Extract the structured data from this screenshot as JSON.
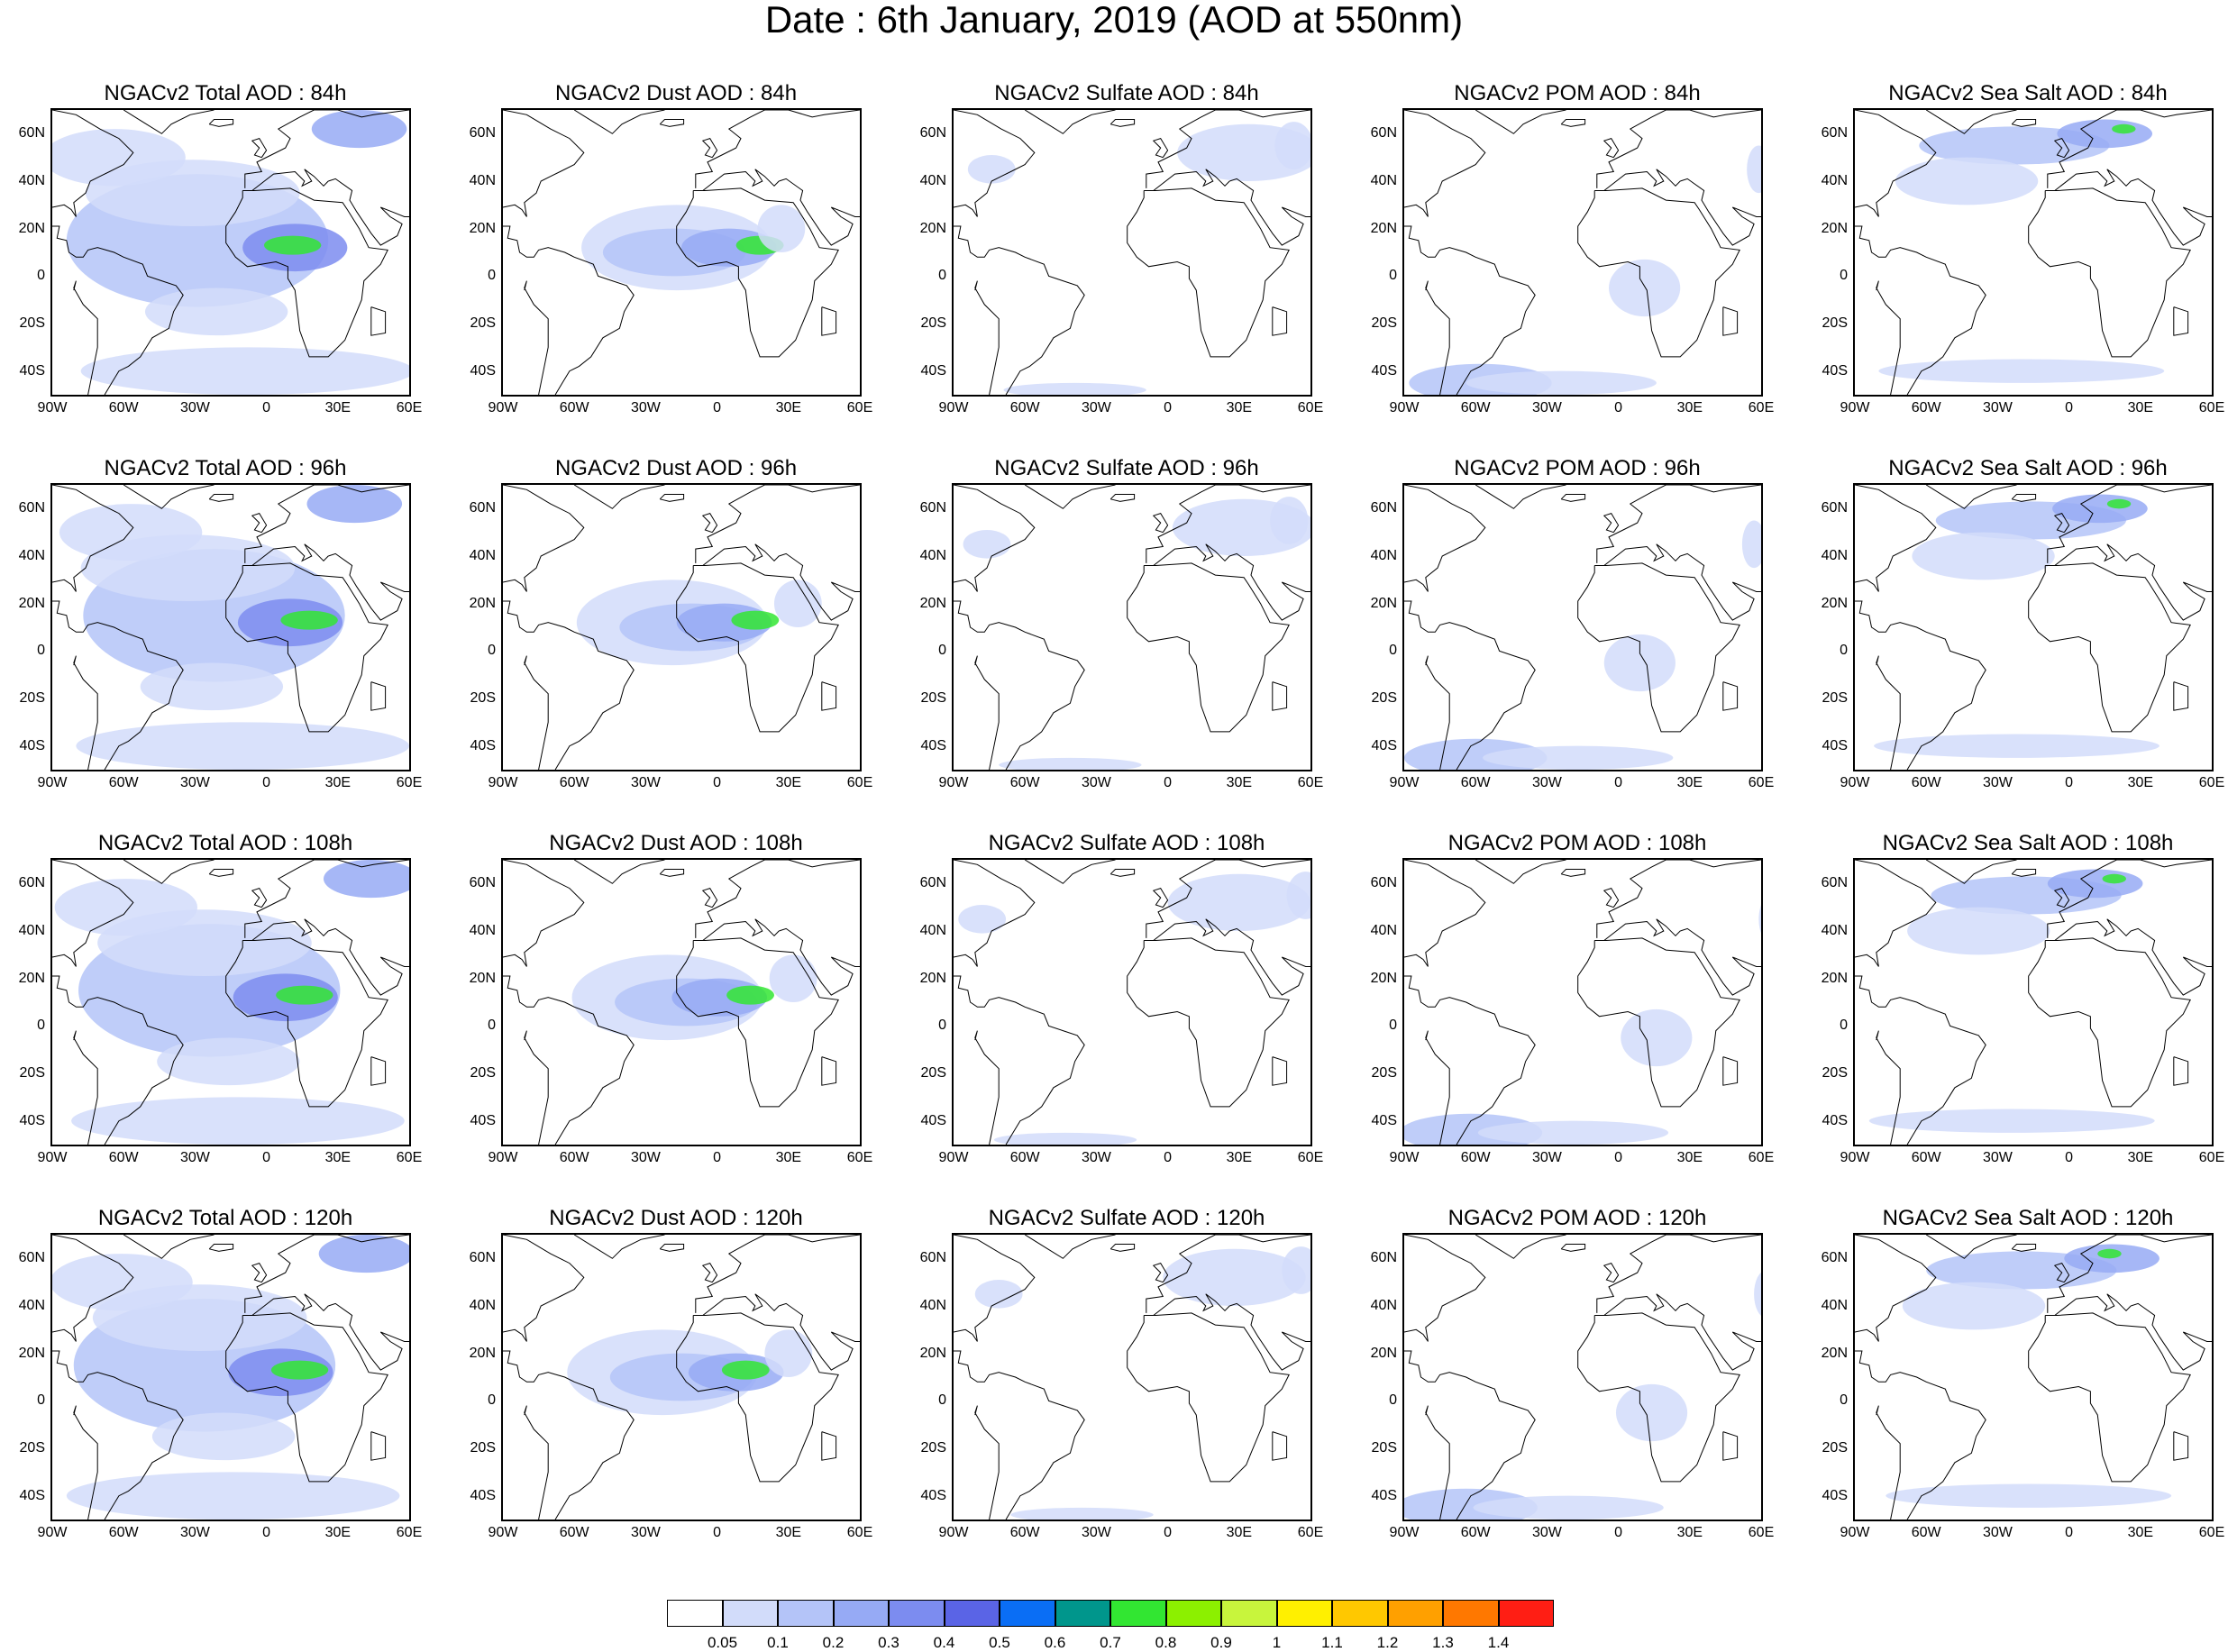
{
  "title": "Date : 6th January, 2019 (AOD at 550nm)",
  "axes": {
    "lat_ticks": [
      "60N",
      "40N",
      "20N",
      "0",
      "20S",
      "40S"
    ],
    "lat_values": [
      60,
      40,
      20,
      0,
      -20,
      -40
    ],
    "lon_ticks": [
      "90W",
      "60W",
      "30W",
      "0",
      "30E",
      "60E"
    ],
    "lon_values": [
      -90,
      -60,
      -30,
      0,
      30,
      60
    ],
    "lon_range": [
      -90,
      60
    ],
    "lat_range": [
      -50,
      70
    ]
  },
  "rows": [
    {
      "panels": [
        {
          "title": "NGACv2 Total AOD : 84h",
          "species": "total",
          "hour": 84
        },
        {
          "title": "NGACv2 Dust AOD : 84h",
          "species": "dust",
          "hour": 84
        },
        {
          "title": "NGACv2 Sulfate AOD : 84h",
          "species": "sulfate",
          "hour": 84
        },
        {
          "title": "NGACv2 POM AOD : 84h",
          "species": "pom",
          "hour": 84
        },
        {
          "title": "NGACv2 Sea Salt AOD : 84h",
          "species": "seasalt",
          "hour": 84
        }
      ]
    },
    {
      "panels": [
        {
          "title": "NGACv2 Total AOD : 96h",
          "species": "total",
          "hour": 96
        },
        {
          "title": "NGACv2 Dust AOD : 96h",
          "species": "dust",
          "hour": 96
        },
        {
          "title": "NGACv2 Sulfate AOD : 96h",
          "species": "sulfate",
          "hour": 96
        },
        {
          "title": "NGACv2 POM AOD : 96h",
          "species": "pom",
          "hour": 96
        },
        {
          "title": "NGACv2 Sea Salt AOD : 96h",
          "species": "seasalt",
          "hour": 96
        }
      ]
    },
    {
      "panels": [
        {
          "title": "NGACv2 Total AOD : 108h",
          "species": "total",
          "hour": 108
        },
        {
          "title": "NGACv2 Dust AOD : 108h",
          "species": "dust",
          "hour": 108
        },
        {
          "title": "NGACv2 Sulfate AOD : 108h",
          "species": "sulfate",
          "hour": 108
        },
        {
          "title": "NGACv2 POM AOD : 108h",
          "species": "pom",
          "hour": 108
        },
        {
          "title": "NGACv2 Sea Salt AOD : 108h",
          "species": "seasalt",
          "hour": 108
        }
      ]
    },
    {
      "panels": [
        {
          "title": "NGACv2 Total AOD : 120h",
          "species": "total",
          "hour": 120
        },
        {
          "title": "NGACv2 Dust AOD : 120h",
          "species": "dust",
          "hour": 120
        },
        {
          "title": "NGACv2 Sulfate AOD : 120h",
          "species": "sulfate",
          "hour": 120
        },
        {
          "title": "NGACv2 POM AOD : 120h",
          "species": "pom",
          "hour": 120
        },
        {
          "title": "NGACv2 Sea Salt  AOD : 120h",
          "species": "seasalt",
          "hour": 120
        }
      ]
    }
  ],
  "colorbar": {
    "labels": [
      "0.05",
      "0.1",
      "0.2",
      "0.3",
      "0.4",
      "0.5",
      "0.6",
      "0.7",
      "0.8",
      "0.9",
      "1",
      "1.1",
      "1.2",
      "1.3",
      "1.4"
    ],
    "colors": [
      "#ffffff",
      "#d2dcfa",
      "#b4c4f8",
      "#96aaf5",
      "#7c8cf0",
      "#5a64e6",
      "#0a6ef5",
      "#00968c",
      "#32e632",
      "#8cf000",
      "#c8f53c",
      "#fff000",
      "#ffc800",
      "#ffa000",
      "#ff7800",
      "#ff1e14"
    ],
    "line_color": "#000000"
  }
}
